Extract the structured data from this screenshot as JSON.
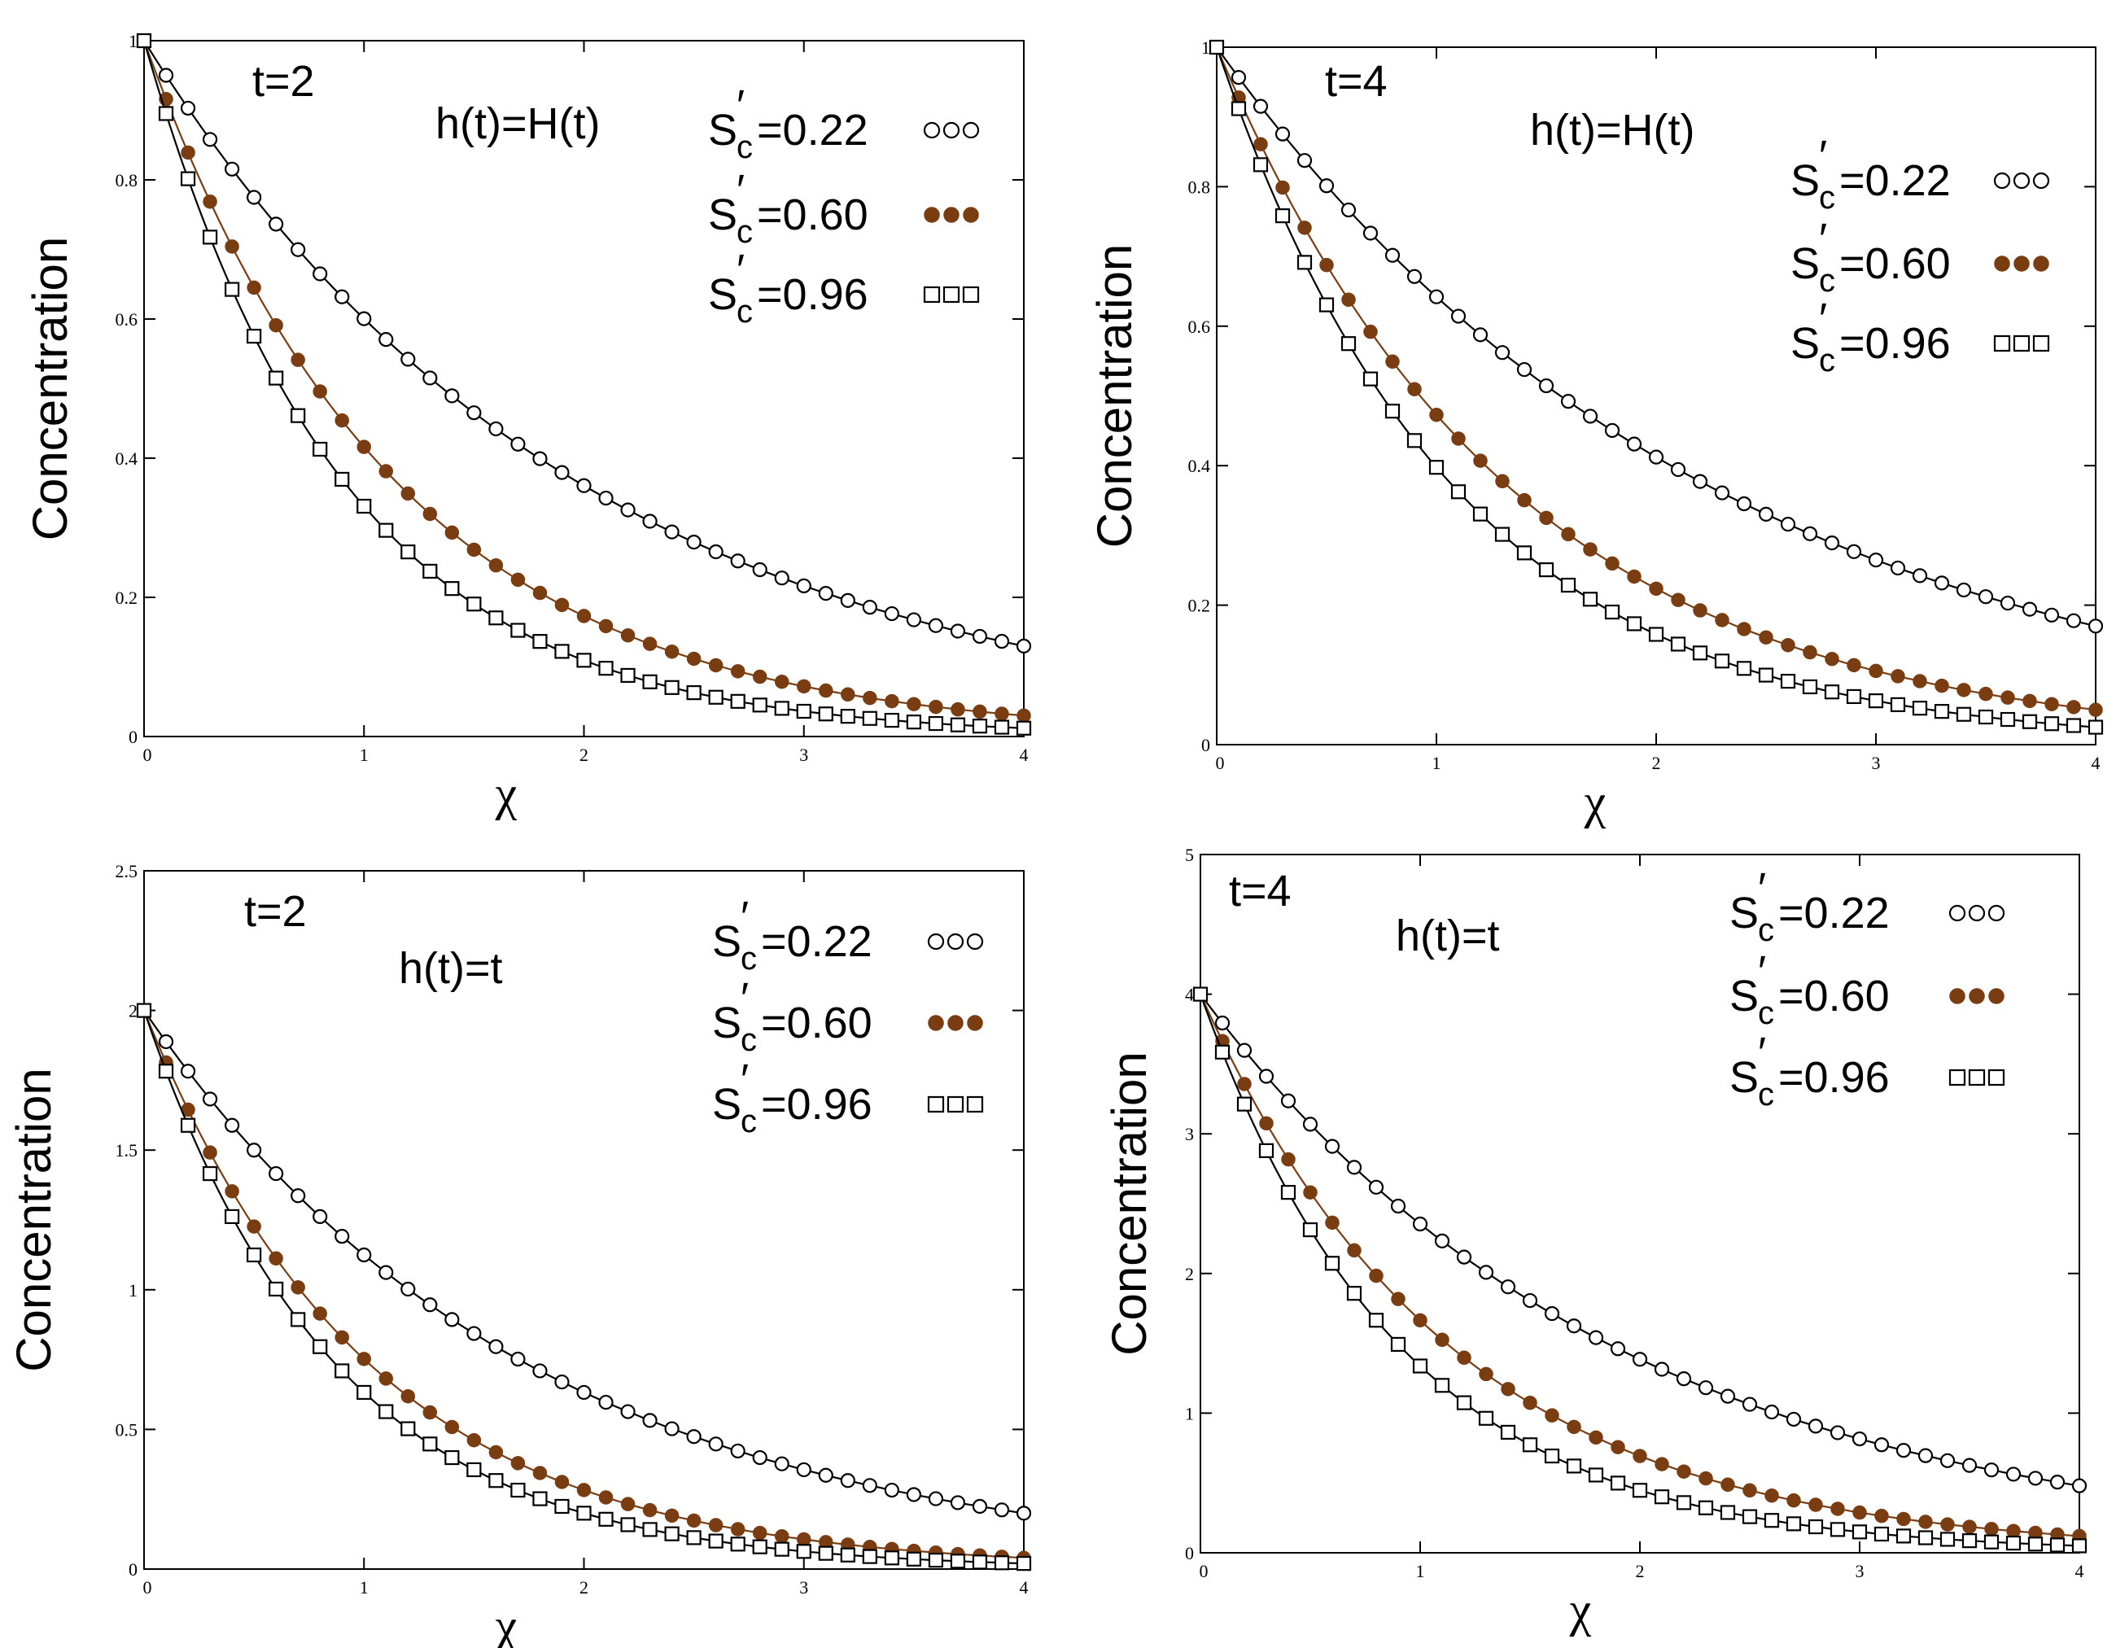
{
  "figure": {
    "x_label": "χ",
    "y_label": "Concentration"
  },
  "legend_sub": "c",
  "chart_data": [
    {
      "type": "line",
      "title": "t=2",
      "annotation": "h(t)=H(t)",
      "xlabel": "χ",
      "ylabel": "Concentration",
      "xlim": [
        0,
        4
      ],
      "ylim": [
        0,
        1
      ],
      "xticks": [
        "0",
        "1",
        "2",
        "3",
        "4"
      ],
      "yticks": [
        "0",
        "0.2",
        "0.4",
        "0.6",
        "0.8",
        "1"
      ],
      "ytick_values": [
        0,
        0.2,
        0.4,
        0.6,
        0.8,
        1
      ],
      "series": [
        {
          "name": "S'c=0.22",
          "label": "=0.22",
          "marker": "circle",
          "color": "#000000",
          "y0": 1,
          "y_end": 0.13
        },
        {
          "name": "S'c=0.60",
          "label": "=0.60",
          "marker": "filled-circle",
          "color": "#7a3d12",
          "y0": 1,
          "y_end": 0.03
        },
        {
          "name": "S'c=0.96",
          "label": "=0.96",
          "marker": "square",
          "color": "#000000",
          "y0": 1,
          "y_end": 0.012
        }
      ]
    },
    {
      "type": "line",
      "title": "t=4",
      "annotation": "h(t)=H(t)",
      "xlabel": "χ",
      "ylabel": "Concentration",
      "xlim": [
        0,
        4
      ],
      "ylim": [
        0,
        1
      ],
      "xticks": [
        "0",
        "1",
        "2",
        "3",
        "4"
      ],
      "yticks": [
        "0",
        "0.2",
        "0.4",
        "0.6",
        "0.8",
        "1"
      ],
      "ytick_values": [
        0,
        0.2,
        0.4,
        0.6,
        0.8,
        1
      ],
      "series": [
        {
          "name": "S'c=0.22",
          "label": "=0.22",
          "marker": "circle",
          "color": "#000000",
          "y0": 1,
          "y_end": 0.17
        },
        {
          "name": "S'c=0.60",
          "label": "=0.60",
          "marker": "filled-circle",
          "color": "#7a3d12",
          "y0": 1,
          "y_end": 0.05
        },
        {
          "name": "S'c=0.96",
          "label": "=0.96",
          "marker": "square",
          "color": "#000000",
          "y0": 1,
          "y_end": 0.025
        }
      ]
    },
    {
      "type": "line",
      "title": "t=2",
      "annotation": "h(t)=t",
      "xlabel": "χ",
      "ylabel": "Concentration",
      "xlim": [
        0,
        4
      ],
      "ylim": [
        0,
        2.5
      ],
      "xticks": [
        "0",
        "1",
        "2",
        "3",
        "4"
      ],
      "yticks": [
        "0",
        "0.5",
        "1",
        "1.5",
        "2",
        "2.5"
      ],
      "ytick_values": [
        0,
        0.5,
        1,
        1.5,
        2,
        2.5
      ],
      "series": [
        {
          "name": "S'c=0.22",
          "label": "=0.22",
          "marker": "circle",
          "color": "#000000",
          "y0": 2,
          "y_end": 0.2
        },
        {
          "name": "S'c=0.60",
          "label": "=0.60",
          "marker": "filled-circle",
          "color": "#7a3d12",
          "y0": 2,
          "y_end": 0.04
        },
        {
          "name": "S'c=0.96",
          "label": "=0.96",
          "marker": "square",
          "color": "#000000",
          "y0": 2,
          "y_end": 0.02
        }
      ]
    },
    {
      "type": "line",
      "title": "t=4",
      "annotation": "h(t)=t",
      "xlabel": "χ",
      "ylabel": "Concentration",
      "xlim": [
        0,
        4
      ],
      "ylim": [
        0,
        5
      ],
      "xticks": [
        "0",
        "1",
        "2",
        "3",
        "4"
      ],
      "yticks": [
        "0",
        "1",
        "2",
        "3",
        "4",
        "5"
      ],
      "ytick_values": [
        0,
        1,
        2,
        3,
        4,
        5
      ],
      "series": [
        {
          "name": "S'c=0.22",
          "label": "=0.22",
          "marker": "circle",
          "color": "#000000",
          "y0": 4,
          "y_end": 0.48
        },
        {
          "name": "S'c=0.60",
          "label": "=0.60",
          "marker": "filled-circle",
          "color": "#7a3d12",
          "y0": 4,
          "y_end": 0.12
        },
        {
          "name": "S'c=0.96",
          "label": "=0.96",
          "marker": "square",
          "color": "#000000",
          "y0": 4,
          "y_end": 0.05
        }
      ]
    }
  ]
}
